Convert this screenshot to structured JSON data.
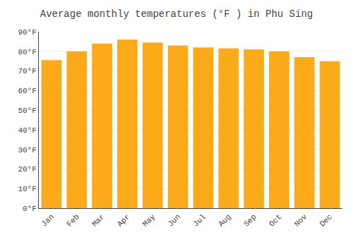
{
  "chart_data": {
    "type": "bar",
    "title": "Average monthly temperatures (°F ) in Phu Sing",
    "categories": [
      "Jan",
      "Feb",
      "Mar",
      "Apr",
      "May",
      "Jun",
      "Jul",
      "Aug",
      "Sep",
      "Oct",
      "Nov",
      "Dec"
    ],
    "values": [
      75.5,
      80.0,
      84.0,
      86.0,
      84.5,
      83.0,
      82.0,
      81.5,
      81.0,
      80.0,
      77.0,
      75.0
    ],
    "color": "#FBAA1A",
    "ylim": [
      0,
      90
    ],
    "yticks": [
      {
        "value": 0,
        "label": "0°F"
      },
      {
        "value": 10,
        "label": "10°F"
      },
      {
        "value": 20,
        "label": "20°F"
      },
      {
        "value": 30,
        "label": "30°F"
      },
      {
        "value": 40,
        "label": "40°F"
      },
      {
        "value": 50,
        "label": "50°F"
      },
      {
        "value": 60,
        "label": "60°F"
      },
      {
        "value": 70,
        "label": "70°F"
      },
      {
        "value": 80,
        "label": "80°F"
      },
      {
        "value": 90,
        "label": "90°F"
      }
    ],
    "grid": true
  }
}
